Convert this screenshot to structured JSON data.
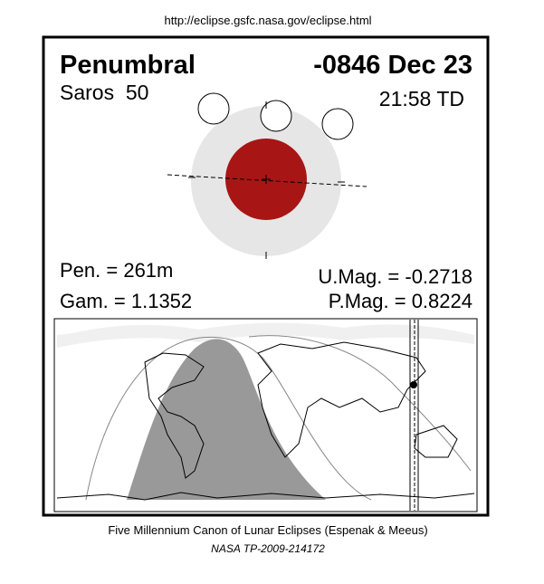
{
  "header": {
    "url": "http://eclipse.gsfc.nasa.gov/eclipse.html"
  },
  "eclipse": {
    "type": "Penumbral",
    "date": "-0846 Dec 23",
    "saros": "Saros  50",
    "time": "21:58 TD",
    "pen": "Pen. = 261m",
    "gam": "Gam. = 1.1352",
    "umag": "U.Mag. = -0.2718",
    "pmag": "P.Mag. = 0.8224"
  },
  "footer": {
    "line1": "Five Millennium Canon of Lunar Eclipses (Espenak & Meeus)",
    "line2": "NASA TP-2009-214172"
  }
}
